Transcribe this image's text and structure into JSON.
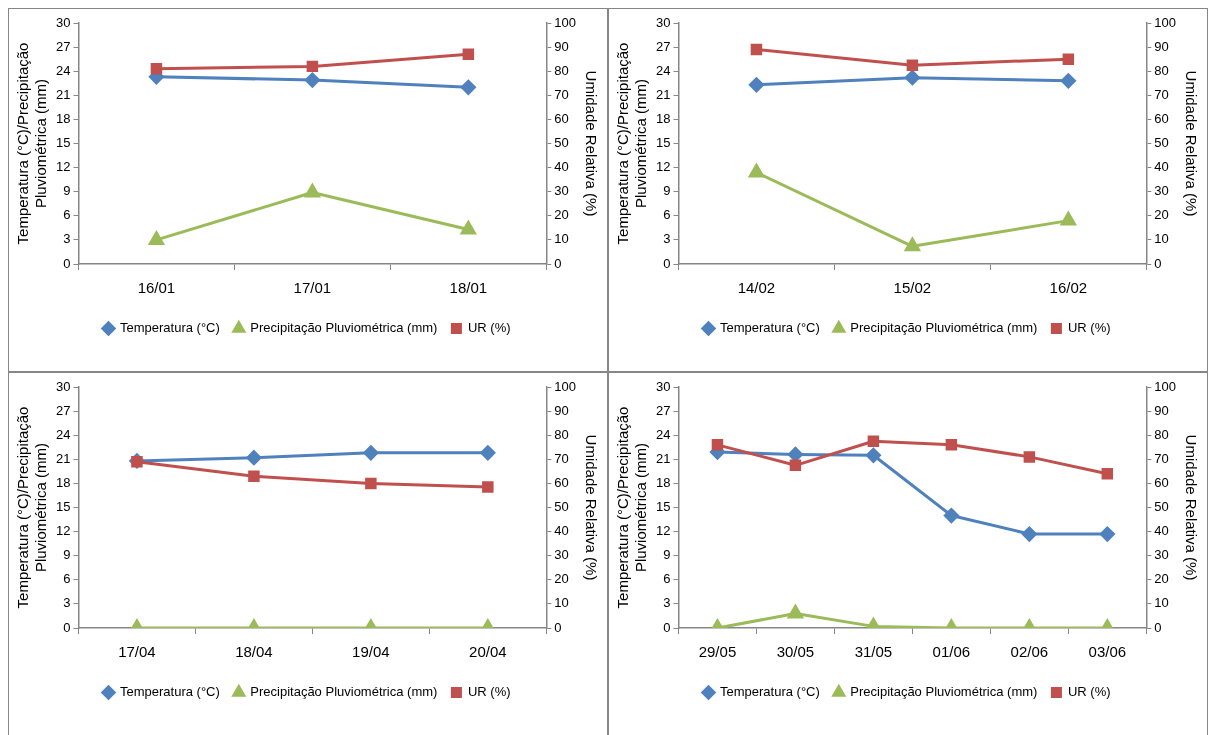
{
  "chart_data": [
    {
      "type": "line",
      "categories": [
        "16/01",
        "17/01",
        "18/01"
      ],
      "ylabel": "Temperatura (°C)/Precipitação Pluviométrica (mm)",
      "y2label": "Umidade Relativa (%)",
      "ylim": [
        0,
        30
      ],
      "yticks": [
        0,
        3,
        6,
        9,
        12,
        15,
        18,
        21,
        24,
        27,
        30
      ],
      "y2lim": [
        0,
        100
      ],
      "y2ticks": [
        0,
        10,
        20,
        30,
        40,
        50,
        60,
        70,
        80,
        90,
        100
      ],
      "grid": false,
      "legend": "bottom",
      "series": [
        {
          "name": "Temperatura (°C)",
          "color": "#4f81bd",
          "marker": "diamond",
          "values": [
            23.3,
            22.9,
            22.0
          ]
        },
        {
          "name": "Precipitação Pluviométrica (mm)",
          "color": "#9bbb59",
          "marker": "triangle",
          "values": [
            3.0,
            8.9,
            4.3
          ]
        },
        {
          "name": "UR (%)",
          "color": "#c0504d",
          "marker": "square",
          "axis": "y2",
          "values": [
            81,
            82,
            87
          ]
        }
      ]
    },
    {
      "type": "line",
      "categories": [
        "14/02",
        "15/02",
        "16/02"
      ],
      "ylabel": "Temperatura (°C)/Precipitação Pluviométrica (mm)",
      "y2label": "Umidade Relativa (%)",
      "ylim": [
        0,
        30
      ],
      "yticks": [
        0,
        3,
        6,
        9,
        12,
        15,
        18,
        21,
        24,
        27,
        30
      ],
      "y2lim": [
        0,
        100
      ],
      "y2ticks": [
        0,
        10,
        20,
        30,
        40,
        50,
        60,
        70,
        80,
        90,
        100
      ],
      "grid": false,
      "legend": "bottom",
      "series": [
        {
          "name": "Temperatura (°C)",
          "color": "#4f81bd",
          "marker": "diamond",
          "values": [
            22.3,
            23.2,
            22.8
          ]
        },
        {
          "name": "Precipitação Pluviométrica (mm)",
          "color": "#9bbb59",
          "marker": "triangle",
          "values": [
            11.4,
            2.2,
            5.4
          ]
        },
        {
          "name": "UR (%)",
          "color": "#c0504d",
          "marker": "square",
          "axis": "y2",
          "values": [
            89,
            82.5,
            85
          ]
        }
      ]
    },
    {
      "type": "line",
      "categories": [
        "17/04",
        "18/04",
        "19/04",
        "20/04"
      ],
      "ylabel": "Temperatura (°C)/Precipitação Pluviométrica (mm)",
      "y2label": "Umidade Relativa (%)",
      "ylim": [
        0,
        30
      ],
      "yticks": [
        0,
        3,
        6,
        9,
        12,
        15,
        18,
        21,
        24,
        27,
        30
      ],
      "y2lim": [
        0,
        100
      ],
      "y2ticks": [
        0,
        10,
        20,
        30,
        40,
        50,
        60,
        70,
        80,
        90,
        100
      ],
      "grid": false,
      "legend": "bottom",
      "series": [
        {
          "name": "Temperatura (°C)",
          "color": "#4f81bd",
          "marker": "diamond",
          "values": [
            20.8,
            21.2,
            21.8,
            21.8
          ]
        },
        {
          "name": "Precipitação Pluviométrica (mm)",
          "color": "#9bbb59",
          "marker": "triangle",
          "values": [
            0,
            0,
            0,
            0
          ]
        },
        {
          "name": "UR (%)",
          "color": "#c0504d",
          "marker": "square",
          "axis": "y2",
          "values": [
            69,
            63,
            60,
            58.5
          ]
        }
      ]
    },
    {
      "type": "line",
      "categories": [
        "29/05",
        "30/05",
        "31/05",
        "01/06",
        "02/06",
        "03/06"
      ],
      "ylabel": "Temperatura (°C)/Precipitação Pluviométrica (mm)",
      "y2label": "Umidade Relativa (%)",
      "ylim": [
        0,
        30
      ],
      "yticks": [
        0,
        3,
        6,
        9,
        12,
        15,
        18,
        21,
        24,
        27,
        30
      ],
      "y2lim": [
        0,
        100
      ],
      "y2ticks": [
        0,
        10,
        20,
        30,
        40,
        50,
        60,
        70,
        80,
        90,
        100
      ],
      "grid": false,
      "legend": "bottom",
      "series": [
        {
          "name": "Temperatura (°C)",
          "color": "#4f81bd",
          "marker": "diamond",
          "values": [
            21.9,
            21.6,
            21.5,
            14.0,
            11.7,
            11.7
          ]
        },
        {
          "name": "Precipitação Pluviométrica (mm)",
          "color": "#9bbb59",
          "marker": "triangle",
          "values": [
            0,
            1.8,
            0.2,
            0,
            0,
            0
          ]
        },
        {
          "name": "UR (%)",
          "color": "#c0504d",
          "marker": "square",
          "axis": "y2",
          "values": [
            76,
            67.5,
            77.5,
            76,
            71,
            64
          ]
        }
      ]
    }
  ]
}
